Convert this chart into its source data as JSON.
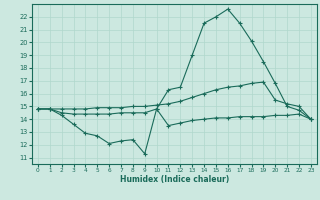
{
  "xlabel": "Humidex (Indice chaleur)",
  "bg_color": "#cce8e0",
  "line_color": "#1a6b5a",
  "grid_color": "#b0d8cc",
  "xlim": [
    -0.5,
    23.5
  ],
  "ylim": [
    10.5,
    23.0
  ],
  "xticks": [
    0,
    1,
    2,
    3,
    4,
    5,
    6,
    7,
    8,
    9,
    10,
    11,
    12,
    13,
    14,
    15,
    16,
    17,
    18,
    19,
    20,
    21,
    22,
    23
  ],
  "yticks": [
    11,
    12,
    13,
    14,
    15,
    16,
    17,
    18,
    19,
    20,
    21,
    22
  ],
  "line1_x": [
    0,
    1,
    2,
    3,
    4,
    5,
    6,
    7,
    8,
    9,
    10,
    11,
    12,
    13,
    14,
    15,
    16,
    17,
    18,
    19,
    20,
    21,
    22,
    23
  ],
  "line1_y": [
    14.8,
    14.8,
    14.3,
    13.6,
    12.9,
    12.7,
    12.1,
    12.3,
    12.4,
    11.3,
    14.8,
    13.5,
    13.7,
    13.9,
    14.0,
    14.1,
    14.1,
    14.2,
    14.2,
    14.2,
    14.3,
    14.3,
    14.4,
    14.0
  ],
  "line2_x": [
    0,
    1,
    2,
    3,
    4,
    5,
    6,
    7,
    8,
    9,
    10,
    11,
    12,
    13,
    14,
    15,
    16,
    17,
    18,
    19,
    20,
    21,
    22,
    23
  ],
  "line2_y": [
    14.8,
    14.8,
    14.8,
    14.8,
    14.8,
    14.9,
    14.9,
    14.9,
    15.0,
    15.0,
    15.1,
    15.2,
    15.4,
    15.7,
    16.0,
    16.3,
    16.5,
    16.6,
    16.8,
    16.9,
    15.5,
    15.2,
    15.0,
    14.0
  ],
  "line3_x": [
    0,
    1,
    2,
    3,
    4,
    5,
    6,
    7,
    8,
    9,
    10,
    11,
    12,
    13,
    14,
    15,
    16,
    17,
    18,
    19,
    20,
    21,
    22,
    23
  ],
  "line3_y": [
    14.8,
    14.8,
    14.5,
    14.4,
    14.4,
    14.4,
    14.4,
    14.5,
    14.5,
    14.5,
    14.8,
    16.3,
    16.5,
    19.0,
    21.5,
    22.0,
    22.6,
    21.5,
    20.1,
    18.5,
    16.8,
    15.0,
    14.7,
    14.0
  ]
}
